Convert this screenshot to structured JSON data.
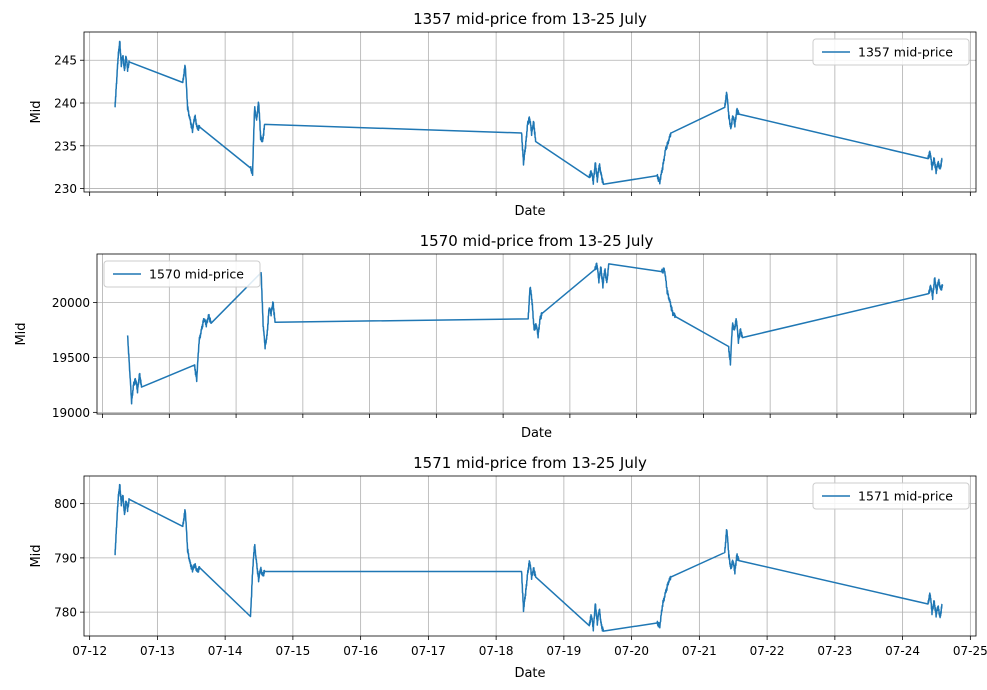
{
  "figure": {
    "background": "#ffffff"
  },
  "style": {
    "line_color": "#1f77b4",
    "grid_color": "#b0b0b0"
  },
  "chart_data": [
    {
      "type": "line",
      "title": "1357 mid-price from 13-25 July",
      "xlabel": "Date",
      "ylabel": "Mid",
      "legend": "upper right",
      "series": [
        {
          "name": "1357 mid-price"
        }
      ],
      "x_ticks": [],
      "y_ticks": [
        230,
        235,
        240,
        245
      ],
      "xlim": [
        "2024-07-11T22:00",
        "2024-07-25T02:00"
      ],
      "ylim": [
        229.6,
        248.3
      ],
      "grid": true,
      "segments": [
        {
          "start": "2024-07-12T09:00",
          "end": "2024-07-12T14:00",
          "values": [
            239.5,
            242.5,
            245.5,
            247.2,
            244.5,
            245.5,
            243.8,
            245.5,
            244.0,
            244.8
          ]
        },
        {
          "start": "2024-07-13T09:00",
          "end": "2024-07-13T15:00",
          "values": [
            242.4,
            244.5,
            239.5,
            238.0,
            236.8,
            238.5,
            237.0,
            237.2
          ]
        },
        {
          "start": "2024-07-14T09:00",
          "end": "2024-07-14T14:00",
          "values": [
            232.4,
            231.8,
            239.5,
            238.0,
            240.2,
            236.0,
            235.5,
            237.5
          ]
        },
        {
          "start": "2024-07-18T09:00",
          "end": "2024-07-18T14:00",
          "values": [
            236.5,
            233.0,
            235.0,
            237.5,
            238.3,
            236.5,
            237.8,
            235.5
          ]
        },
        {
          "start": "2024-07-19T09:00",
          "end": "2024-07-19T14:00",
          "values": [
            231.3,
            232.0,
            230.8,
            233.0,
            231.0,
            232.8,
            231.5,
            230.5
          ]
        },
        {
          "start": "2024-07-20T09:00",
          "end": "2024-07-20T14:00",
          "values": [
            231.5,
            230.8,
            232.5,
            234.5,
            235.5,
            236.5
          ]
        },
        {
          "start": "2024-07-21T09:00",
          "end": "2024-07-21T14:00",
          "values": [
            239.5,
            241.3,
            238.5,
            237.0,
            238.5,
            237.5,
            239.2,
            238.7
          ]
        },
        {
          "start": "2024-07-24T09:00",
          "end": "2024-07-24T14:00",
          "values": [
            233.5,
            234.3,
            232.5,
            233.5,
            232.0,
            233.0,
            232.3,
            233.5
          ]
        }
      ]
    },
    {
      "type": "line",
      "title": "1570 mid-price from 13-25 July",
      "xlabel": "Date",
      "ylabel": "Mid",
      "legend": "upper left",
      "series": [
        {
          "name": "1570 mid-price"
        }
      ],
      "x_ticks": [],
      "y_ticks": [
        19000,
        19500,
        20000
      ],
      "xlim": [
        "2024-07-11T22:00",
        "2024-07-25T02:00"
      ],
      "ylim": [
        18985,
        20440
      ],
      "grid": true,
      "segments": [
        {
          "start": "2024-07-12T09:00",
          "end": "2024-07-12T14:00",
          "values": [
            19700,
            19400,
            19100,
            19250,
            19300,
            19200,
            19350,
            19230
          ]
        },
        {
          "start": "2024-07-13T09:00",
          "end": "2024-07-13T15:00",
          "values": [
            19430,
            19300,
            19650,
            19750,
            19850,
            19800,
            19880,
            19810
          ]
        },
        {
          "start": "2024-07-14T09:00",
          "end": "2024-07-14T14:00",
          "values": [
            20270,
            19800,
            19600,
            19700,
            19950,
            19900,
            20000,
            19820
          ]
        },
        {
          "start": "2024-07-18T09:00",
          "end": "2024-07-18T14:00",
          "values": [
            19850,
            20150,
            20000,
            19750,
            19800,
            19700,
            19850,
            19900
          ]
        },
        {
          "start": "2024-07-19T09:00",
          "end": "2024-07-19T14:00",
          "values": [
            20300,
            20350,
            20200,
            20320,
            20150,
            20300,
            20180,
            20350
          ]
        },
        {
          "start": "2024-07-20T09:00",
          "end": "2024-07-20T14:00",
          "values": [
            20280,
            20300,
            20100,
            20000,
            19900,
            19870
          ]
        },
        {
          "start": "2024-07-21T09:00",
          "end": "2024-07-21T14:00",
          "values": [
            19600,
            19450,
            19800,
            19750,
            19850,
            19650,
            19750,
            19680
          ]
        },
        {
          "start": "2024-07-24T09:00",
          "end": "2024-07-24T14:00",
          "values": [
            20080,
            20150,
            20050,
            20220,
            20100,
            20200,
            20120,
            20150
          ]
        }
      ]
    },
    {
      "type": "line",
      "title": "1571 mid-price from 13-25 July",
      "xlabel": "Date",
      "ylabel": "Mid",
      "legend": "upper right",
      "series": [
        {
          "name": "1571 mid-price"
        }
      ],
      "x_ticks": [
        "07-12",
        "07-13",
        "07-14",
        "07-15",
        "07-16",
        "07-17",
        "07-18",
        "07-19",
        "07-20",
        "07-21",
        "07-22",
        "07-23",
        "07-24",
        "07-25"
      ],
      "y_ticks": [
        780,
        790,
        800
      ],
      "xlim": [
        "2024-07-11T22:00",
        "2024-07-25T02:00"
      ],
      "ylim": [
        775.6,
        805.1
      ],
      "grid": true,
      "segments": [
        {
          "start": "2024-07-12T09:00",
          "end": "2024-07-12T14:00",
          "values": [
            790.5,
            796.0,
            801.0,
            803.5,
            800.0,
            801.5,
            798.0,
            800.5,
            799.0,
            800.8
          ]
        },
        {
          "start": "2024-07-13T09:00",
          "end": "2024-07-13T15:00",
          "values": [
            795.8,
            799.0,
            791.5,
            789.0,
            787.8,
            788.7,
            787.5,
            788.2
          ]
        },
        {
          "start": "2024-07-14T09:00",
          "end": "2024-07-14T14:00",
          "values": [
            779.2,
            787.5,
            792.5,
            789.0,
            786.0,
            788.0,
            786.8,
            787.5
          ]
        },
        {
          "start": "2024-07-18T09:00",
          "end": "2024-07-18T14:00",
          "values": [
            787.5,
            780.5,
            783.5,
            787.0,
            789.5,
            786.5,
            788.0,
            786.5
          ]
        },
        {
          "start": "2024-07-19T09:00",
          "end": "2024-07-19T14:00",
          "values": [
            777.5,
            779.5,
            777.0,
            781.5,
            778.0,
            780.5,
            777.5,
            776.5
          ]
        },
        {
          "start": "2024-07-20T09:00",
          "end": "2024-07-20T14:00",
          "values": [
            778.0,
            777.5,
            781.5,
            783.5,
            785.5,
            786.5
          ]
        },
        {
          "start": "2024-07-21T09:00",
          "end": "2024-07-21T14:00",
          "values": [
            791.0,
            795.5,
            790.5,
            788.0,
            789.5,
            787.5,
            790.5,
            789.5
          ]
        },
        {
          "start": "2024-07-24T09:00",
          "end": "2024-07-24T14:00",
          "values": [
            781.5,
            783.5,
            780.0,
            782.0,
            779.5,
            781.0,
            779.0,
            781.5
          ]
        }
      ]
    }
  ]
}
